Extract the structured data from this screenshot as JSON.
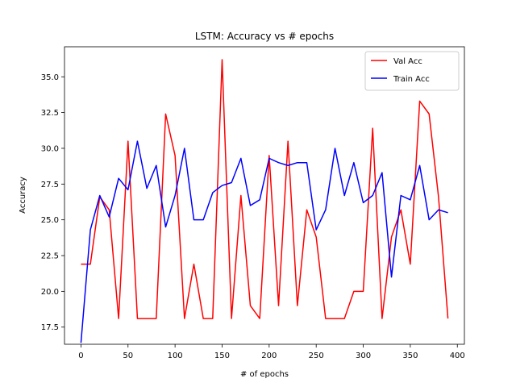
{
  "chart_data": {
    "type": "line",
    "title": "LSTM: Accuracy vs # epochs",
    "xlabel": "# of epochs",
    "ylabel": "Accuracy",
    "xlim": [
      -17.5,
      407.5
    ],
    "ylim": [
      16.3,
      37.1
    ],
    "xticks": [
      0,
      50,
      100,
      150,
      200,
      250,
      300,
      350,
      400
    ],
    "yticks": [
      17.5,
      20.0,
      22.5,
      25.0,
      27.5,
      30.0,
      32.5,
      35.0
    ],
    "grid": false,
    "legend_position": "top-right",
    "x": [
      0,
      10,
      20,
      30,
      40,
      50,
      60,
      70,
      80,
      90,
      100,
      110,
      120,
      130,
      140,
      150,
      160,
      170,
      180,
      190,
      200,
      210,
      220,
      230,
      240,
      250,
      260,
      270,
      280,
      290,
      300,
      310,
      320,
      330,
      340,
      350,
      360,
      370,
      380,
      390
    ],
    "series": [
      {
        "name": "Val Acc",
        "color": "#ff0000",
        "values": [
          21.9,
          21.9,
          26.6,
          25.7,
          18.1,
          30.5,
          18.1,
          18.1,
          18.1,
          32.4,
          29.5,
          18.1,
          21.9,
          18.1,
          18.1,
          36.2,
          18.1,
          26.7,
          19.0,
          18.1,
          29.5,
          19.0,
          30.5,
          19.0,
          25.7,
          23.8,
          18.1,
          18.1,
          18.1,
          20.0,
          20.0,
          31.4,
          18.1,
          23.8,
          25.7,
          21.9,
          33.3,
          32.4,
          26.6,
          18.1
        ]
      },
      {
        "name": "Train Acc",
        "color": "#0000ff",
        "values": [
          16.4,
          24.3,
          26.7,
          25.2,
          27.9,
          27.1,
          30.5,
          27.2,
          28.8,
          24.5,
          26.7,
          30.0,
          25.0,
          25.0,
          26.9,
          27.4,
          27.6,
          29.3,
          26.0,
          26.4,
          29.3,
          29.0,
          28.8,
          29.0,
          29.0,
          24.3,
          25.7,
          30.0,
          26.7,
          29.0,
          26.2,
          26.7,
          28.3,
          21.0,
          26.7,
          26.4,
          28.8,
          25.0,
          25.7,
          25.5
        ]
      }
    ]
  }
}
